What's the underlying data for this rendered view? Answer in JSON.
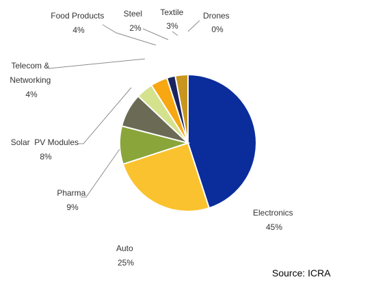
{
  "chart_data": {
    "type": "pie",
    "slices": [
      {
        "name": "Electronics",
        "value": 45,
        "label": "45%",
        "color": "#0a2d9b"
      },
      {
        "name": "Auto",
        "value": 25,
        "label": "25%",
        "color": "#fbc22f"
      },
      {
        "name": "Pharma",
        "value": 9,
        "label": "9%",
        "color": "#8aa53a"
      },
      {
        "name": "Solar  PV Modules",
        "value": 8,
        "label": "8%",
        "color": "#6b6b55"
      },
      {
        "name": "Telecom & Networking",
        "value": 4,
        "label": "4%",
        "color": "#d4e28e"
      },
      {
        "name": "Food Products",
        "value": 4,
        "label": "4%",
        "color": "#f6a712"
      },
      {
        "name": "Steel",
        "value": 2,
        "label": "2%",
        "color": "#1a2560"
      },
      {
        "name": "Textile",
        "value": 3,
        "label": "3%",
        "color": "#c8961e"
      },
      {
        "name": "Drones",
        "value": 0,
        "label": "0%",
        "color": "#1f3b8e"
      }
    ],
    "start": "12 o'clock",
    "direction": "clockwise",
    "legend": "none",
    "annotation": "Source: ICRA"
  }
}
